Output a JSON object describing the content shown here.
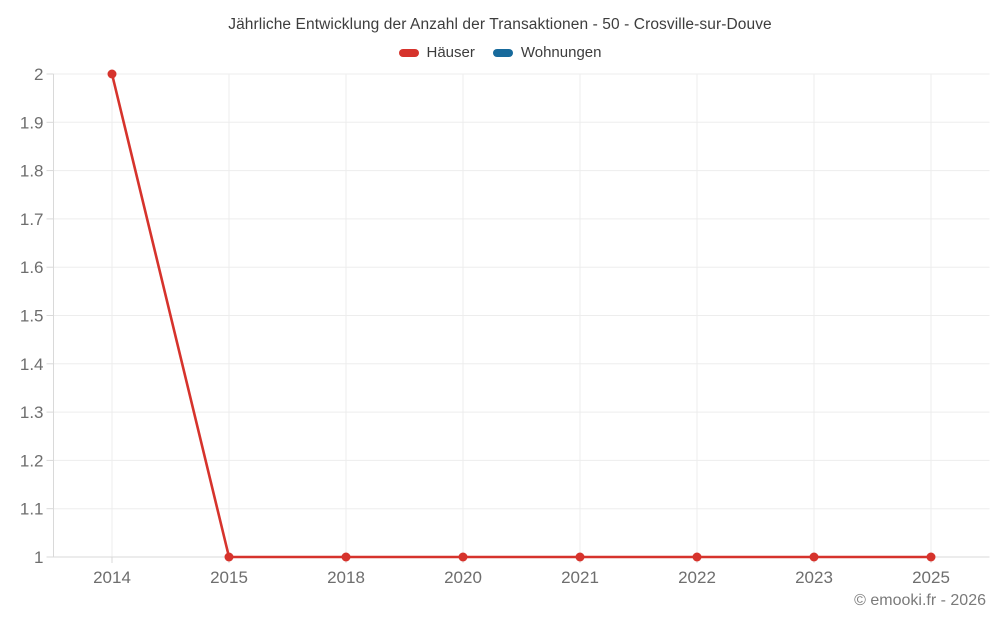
{
  "title": "Jährliche Entwicklung der Anzahl der Transaktionen - 50 - Crosville-sur-Douve",
  "footer": "© emooki.fr - 2026",
  "colors": {
    "grid": "#ededed",
    "axis": "#d9d9d9",
    "axis_text": "#6e6e6e"
  },
  "chart_data": {
    "type": "line",
    "title": "Jährliche Entwicklung der Anzahl der Transaktionen - 50 - Crosville-sur-Douve",
    "categories": [
      "2014",
      "2015",
      "2018",
      "2020",
      "2021",
      "2022",
      "2023",
      "2025"
    ],
    "series": [
      {
        "name": "Häuser",
        "color": "#d6332c",
        "values": [
          2,
          1,
          1,
          1,
          1,
          1,
          1,
          1
        ]
      },
      {
        "name": "Wohnungen",
        "color": "#176a9c",
        "values": []
      }
    ],
    "xlabel": "",
    "ylabel": "",
    "ylim": [
      1,
      2
    ],
    "ytick_values": [
      1,
      1.1,
      1.2,
      1.3,
      1.4,
      1.5,
      1.6,
      1.7,
      1.8,
      1.9,
      2
    ],
    "ytick_labels": [
      "1",
      "1.1",
      "1.2",
      "1.3",
      "1.4",
      "1.5",
      "1.6",
      "1.7",
      "1.8",
      "1.9",
      "2"
    ],
    "grid": true,
    "legend_position": "top"
  }
}
